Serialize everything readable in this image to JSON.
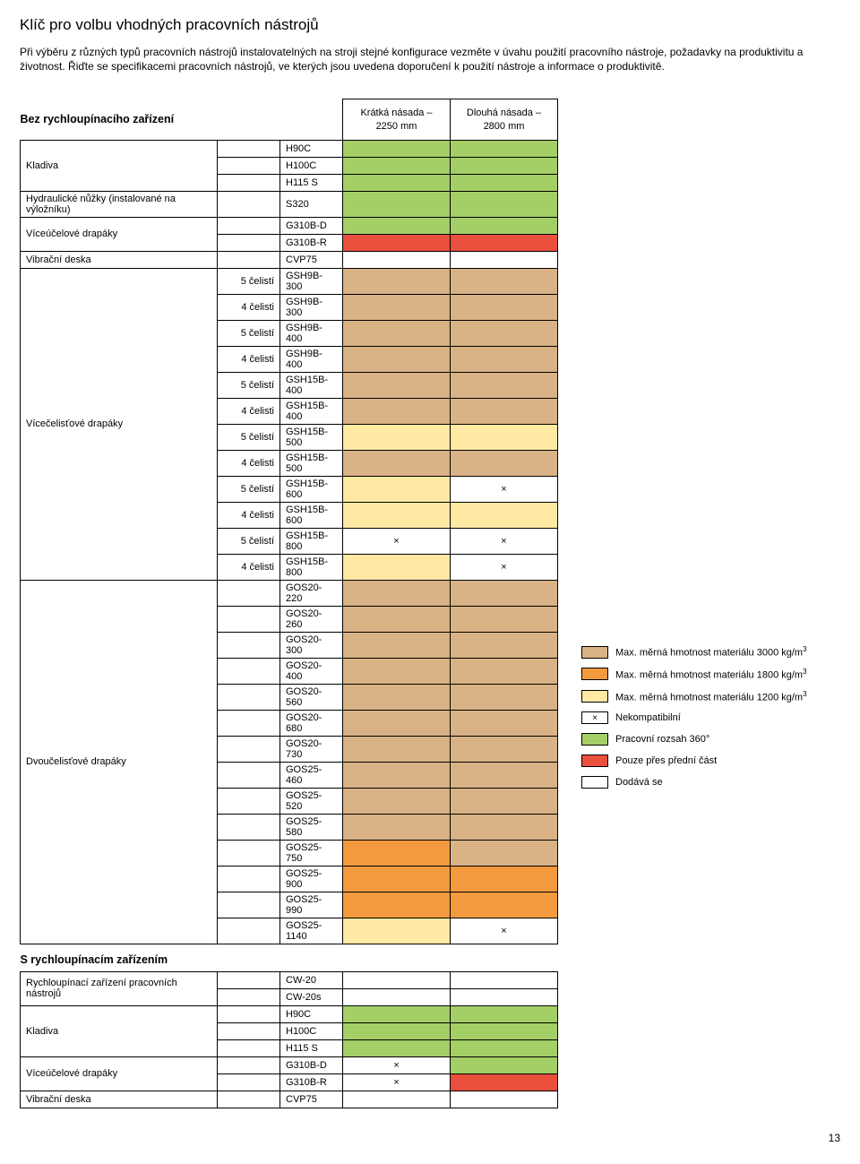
{
  "title": "Klíč pro volbu vhodných pracovních nástrojů",
  "intro": "Při výběru z různých typů pracovních nástrojů instalovatelných na stroji stejné konfigurace vezměte v úvahu použití pracovního nástroje, požadavky na produktivitu a životnost. Řiďte se specifikacemi pracovních nástrojů, ve kterých jsou uvedena doporučení k použití nástroje a informace o produktivitě.",
  "colors": {
    "tan": "#d9b285",
    "orange": "#f39a3e",
    "yellow": "#ffe9a3",
    "green": "#a4cf66",
    "red": "#e94f3d",
    "white": "#ffffff"
  },
  "cols": {
    "header_label": "Bez rychloupínacího zařízení",
    "c1": "Krátká násada –\n2250 mm",
    "c2": "Dlouhá násada –\n2800 mm"
  },
  "section2_header": "S rychloupínacím zařízením",
  "rows1": [
    {
      "cat": "Kladiva",
      "catSpan": 3,
      "sub": "",
      "model": "H90C",
      "c1": "green",
      "c2": "green"
    },
    {
      "sub": "",
      "model": "H100C",
      "c1": "green",
      "c2": "green"
    },
    {
      "sub": "",
      "model": "H115 S",
      "c1": "green",
      "c2": "green"
    },
    {
      "cat": "Hydraulické nůžky (instalované na výložníku)",
      "catSpan": 1,
      "sub": "",
      "model": "S320",
      "c1": "green",
      "c2": "green"
    },
    {
      "cat": "Víceúčelové drapáky",
      "catSpan": 2,
      "sub": "",
      "model": "G310B-D",
      "c1": "green",
      "c2": "green"
    },
    {
      "sub": "",
      "model": "G310B-R",
      "c1": "red",
      "c2": "red"
    },
    {
      "cat": "Vibrační deska",
      "catSpan": 1,
      "sub": "",
      "model": "CVP75",
      "c1": "white",
      "c2": "white"
    },
    {
      "cat": "Vícečelisťové drapáky",
      "catSpan": 12,
      "sub": "5 čelistí",
      "model": "GSH9B-300",
      "c1": "tan",
      "c2": "tan"
    },
    {
      "sub": "4 čelisti",
      "model": "GSH9B-300",
      "c1": "tan",
      "c2": "tan"
    },
    {
      "sub": "5 čelistí",
      "model": "GSH9B-400",
      "c1": "tan",
      "c2": "tan"
    },
    {
      "sub": "4 čelisti",
      "model": "GSH9B-400",
      "c1": "tan",
      "c2": "tan"
    },
    {
      "sub": "5 čelistí",
      "model": "GSH15B-400",
      "c1": "tan",
      "c2": "tan"
    },
    {
      "sub": "4 čelisti",
      "model": "GSH15B-400",
      "c1": "tan",
      "c2": "tan"
    },
    {
      "sub": "5 čelistí",
      "model": "GSH15B-500",
      "c1": "yellow",
      "c2": "yellow"
    },
    {
      "sub": "4 čelisti",
      "model": "GSH15B-500",
      "c1": "tan",
      "c2": "tan"
    },
    {
      "sub": "5 čelistí",
      "model": "GSH15B-600",
      "c1": "yellow",
      "c2": "×"
    },
    {
      "sub": "4 čelisti",
      "model": "GSH15B-600",
      "c1": "yellow",
      "c2": "yellow"
    },
    {
      "sub": "5 čelistí",
      "model": "GSH15B-800",
      "c1": "×",
      "c2": "×"
    },
    {
      "sub": "4 čelisti",
      "model": "GSH15B-800",
      "c1": "yellow",
      "c2": "×"
    },
    {
      "cat": "Dvoučelisťové drapáky",
      "catSpan": 14,
      "sub": "",
      "model": "GOS20-220",
      "c1": "tan",
      "c2": "tan"
    },
    {
      "sub": "",
      "model": "GOS20-260",
      "c1": "tan",
      "c2": "tan"
    },
    {
      "sub": "",
      "model": "GOS20-300",
      "c1": "tan",
      "c2": "tan"
    },
    {
      "sub": "",
      "model": "GOS20-400",
      "c1": "tan",
      "c2": "tan"
    },
    {
      "sub": "",
      "model": "GOS20-560",
      "c1": "tan",
      "c2": "tan"
    },
    {
      "sub": "",
      "model": "GOS20-680",
      "c1": "tan",
      "c2": "tan"
    },
    {
      "sub": "",
      "model": "GOS20-730",
      "c1": "tan",
      "c2": "tan"
    },
    {
      "sub": "",
      "model": "GOS25-460",
      "c1": "tan",
      "c2": "tan"
    },
    {
      "sub": "",
      "model": "GOS25-520",
      "c1": "tan",
      "c2": "tan"
    },
    {
      "sub": "",
      "model": "GOS25-580",
      "c1": "tan",
      "c2": "tan"
    },
    {
      "sub": "",
      "model": "GOS25-750",
      "c1": "orange",
      "c2": "tan"
    },
    {
      "sub": "",
      "model": "GOS25-900",
      "c1": "orange",
      "c2": "orange"
    },
    {
      "sub": "",
      "model": "GOS25-990",
      "c1": "orange",
      "c2": "orange"
    },
    {
      "sub": "",
      "model": "GOS25-1140",
      "c1": "yellow",
      "c2": "×"
    }
  ],
  "rows2": [
    {
      "cat": "Rychloupínací zařízení pracovních nástrojů",
      "catSpan": 2,
      "sub": "",
      "model": "CW-20",
      "c1": "white",
      "c2": "white"
    },
    {
      "sub": "",
      "model": "CW-20s",
      "c1": "white",
      "c2": "white"
    },
    {
      "cat": "Kladiva",
      "catSpan": 3,
      "sub": "",
      "model": "H90C",
      "c1": "green",
      "c2": "green"
    },
    {
      "sub": "",
      "model": "H100C",
      "c1": "green",
      "c2": "green"
    },
    {
      "sub": "",
      "model": "H115 S",
      "c1": "green",
      "c2": "green"
    },
    {
      "cat": "Víceúčelové drapáky",
      "catSpan": 2,
      "sub": "",
      "model": "G310B-D",
      "c1": "×",
      "c2": "green"
    },
    {
      "sub": "",
      "model": "G310B-R",
      "c1": "×",
      "c2": "red"
    },
    {
      "cat": "Vibrační deska",
      "catSpan": 1,
      "sub": "",
      "model": "CVP75",
      "c1": "white",
      "c2": "white"
    }
  ],
  "legend": [
    {
      "type": "swatch",
      "color": "tan",
      "label": "Max. měrná hmotnost materiálu 3000 kg/m³"
    },
    {
      "type": "swatch",
      "color": "orange",
      "label": "Max. měrná hmotnost materiálu 1800 kg/m³"
    },
    {
      "type": "swatch",
      "color": "yellow",
      "label": "Max. měrná hmotnost materiálu 1200 kg/m³"
    },
    {
      "type": "x",
      "label": "Nekompatibilní"
    },
    {
      "type": "swatch",
      "color": "green",
      "label": "Pracovní rozsah 360°"
    },
    {
      "type": "swatch",
      "color": "red",
      "label": "Pouze přes přední část"
    },
    {
      "type": "swatch",
      "color": "white",
      "label": "Dodává se"
    }
  ],
  "pageNum": "13"
}
